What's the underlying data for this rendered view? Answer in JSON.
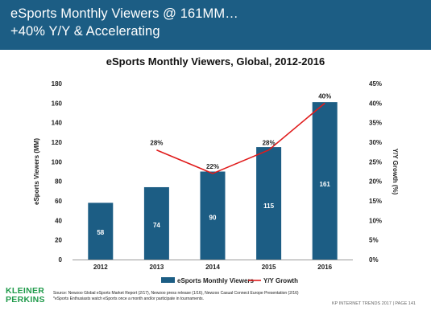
{
  "header": {
    "line1": "eSports Monthly Viewers @ 161MM…",
    "line2": "+40% Y/Y & Accelerating",
    "background": "#1c5d84"
  },
  "chart_data": {
    "type": "bar",
    "title": "eSports Monthly Viewers, Global, 2012-2016",
    "categories": [
      "2012",
      "2013",
      "2014",
      "2015",
      "2016"
    ],
    "series": [
      {
        "name": "eSports Monthly Viewers",
        "type": "bar",
        "axis": "left",
        "values": [
          58,
          74,
          90,
          115,
          161
        ],
        "data_labels": [
          "58",
          "74",
          "90",
          "115",
          "161"
        ],
        "color": "#1c5d84"
      },
      {
        "name": "Y/Y Growth",
        "type": "line",
        "axis": "right",
        "values": [
          null,
          28,
          22,
          28,
          40
        ],
        "data_labels": [
          "",
          "28%",
          "22%",
          "28%",
          "40%"
        ],
        "color": "#e01b1b"
      }
    ],
    "ylabel": "eSports Viewers (MM)",
    "y2label": "Y/Y Growth (%)",
    "ylim": [
      0,
      180
    ],
    "yticks": [
      "0",
      "20",
      "40",
      "60",
      "80",
      "100",
      "120",
      "140",
      "160",
      "180"
    ],
    "y2lim": [
      0,
      45
    ],
    "y2ticks": [
      "0%",
      "5%",
      "10%",
      "15%",
      "20%",
      "25%",
      "30%",
      "35%",
      "40%",
      "45%"
    ],
    "grid": false,
    "legend": "bottom"
  },
  "footer": {
    "source_line1": "Source: Newzoo Global eSports Market Report (2/17), Newzoo press release (1/16), Newzoo Casual Connect Europe Presentation (2/16)",
    "source_line2": "*eSports Enthusiasts watch eSports once a month and/or participate in tournaments.",
    "logo_line1": "KLEINER",
    "logo_line2": "PERKINS",
    "logo_color": "#1f9a4a",
    "page_label": "KP INTERNET TRENDS 2017  |  PAGE 141"
  }
}
